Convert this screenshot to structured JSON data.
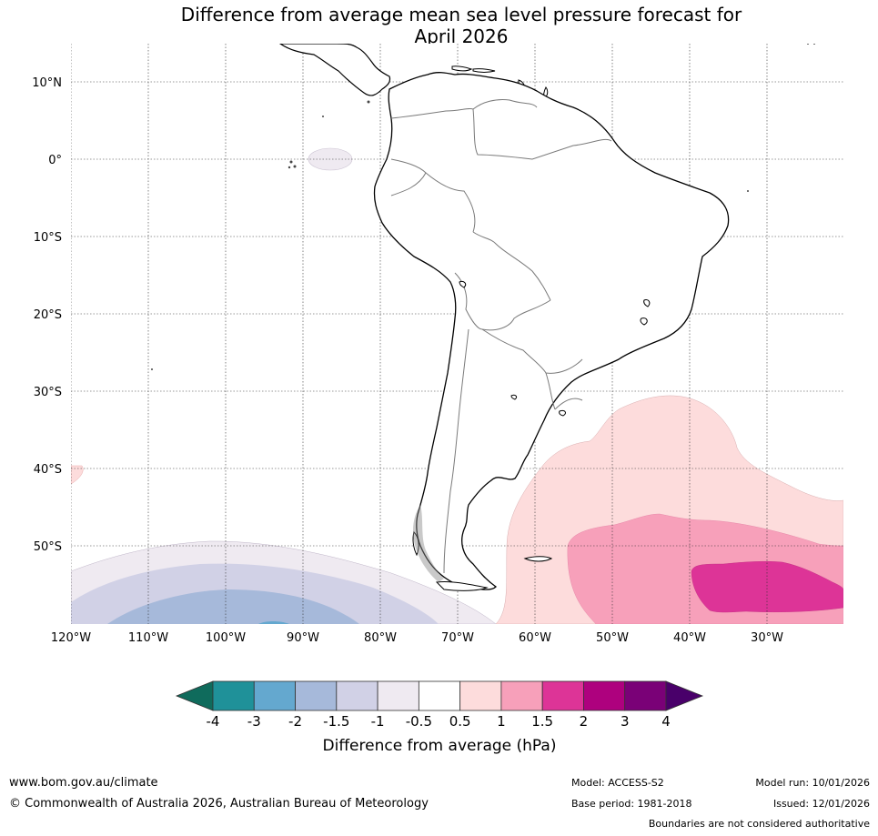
{
  "title_line1": "Difference from average mean sea level pressure forecast for",
  "title_line2": "April 2026",
  "map": {
    "lat_labels": [
      "10°N",
      "0°",
      "10°S",
      "20°S",
      "30°S",
      "40°S",
      "50°S"
    ],
    "lon_labels": [
      "120°W",
      "110°W",
      "100°W",
      "90°W",
      "80°W",
      "70°W",
      "60°W",
      "50°W",
      "40°W",
      "30°W"
    ],
    "anomaly_regions": [
      {
        "name": "south-atlantic-positive",
        "level_hPa": [
          0.5,
          1.0,
          1.5
        ]
      },
      {
        "name": "south-pacific-negative",
        "level_hPa": [
          -0.5,
          -1.0,
          -1.5,
          -2.0
        ]
      },
      {
        "name": "equatorial-pacific-weak-negative",
        "level_hPa": [
          -0.5
        ]
      }
    ]
  },
  "colorbar": {
    "label": "Difference from average (hPa)",
    "ticks": [
      "-4",
      "-3",
      "-2",
      "-1.5",
      "-1",
      "-0.5",
      "0.5",
      "1",
      "1.5",
      "2",
      "3",
      "4"
    ],
    "colors": [
      "#0f6b5c",
      "#1f9199",
      "#64a8cf",
      "#a6b9da",
      "#d1d1e6",
      "#efeaf1",
      "#ffffff",
      "#fddcdc",
      "#f7a0ba",
      "#dd3497",
      "#ae017e",
      "#7a0177",
      "#49006a"
    ]
  },
  "footer": {
    "website": "www.bom.gov.au/climate",
    "copyright": "© Commonwealth of Australia 2026, Australian Bureau of Meteorology",
    "model": "Model: ACCESS-S2",
    "base_period": "Base period: 1981-2018",
    "model_run": "Model run: 10/01/2026",
    "issued": "Issued: 12/01/2026",
    "boundaries_note": "Boundaries are not considered authoritative"
  }
}
